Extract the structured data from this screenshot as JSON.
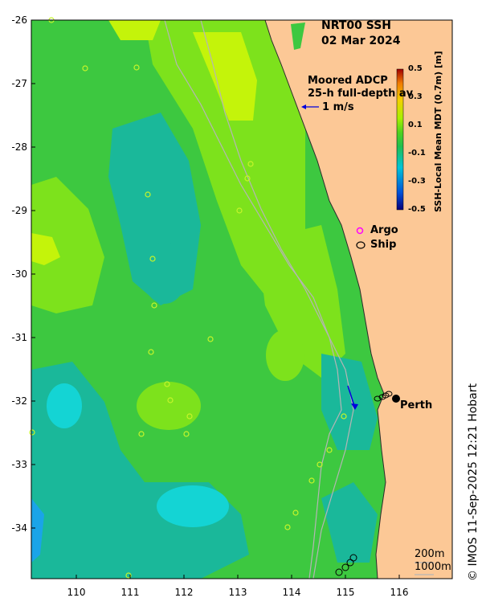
{
  "title": {
    "line1": "NRT00 SSH",
    "line2": "02 Mar 2024"
  },
  "adcp": {
    "line1": "Moored ADCP",
    "line2": "25-h full-depth av",
    "scale_label": "1 m/s"
  },
  "colorbar": {
    "label": "SSH-Local Mean MDT (0.7m) [m]",
    "ticks": [
      "0.5",
      "0.3",
      "0.1",
      "-0.1",
      "-0.3",
      "-0.5"
    ],
    "range": [
      -0.5,
      0.5
    ],
    "colors": [
      "#08007a",
      "#0050d8",
      "#00c4d8",
      "#1fbf4f",
      "#4fd21f",
      "#a8f000",
      "#f4d000",
      "#f07a00",
      "#a00000"
    ]
  },
  "axes": {
    "x_ticks": [
      "110",
      "111",
      "112",
      "113",
      "114",
      "115",
      "116"
    ],
    "y_ticks": [
      "-26",
      "-27",
      "-28",
      "-29",
      "-30",
      "-31",
      "-32",
      "-33",
      "-34"
    ],
    "lon_range": [
      109.15,
      116.9
    ],
    "lat_range": [
      -34.8,
      -26.0
    ]
  },
  "legend": {
    "argo": "Argo",
    "ship": "Ship"
  },
  "places": {
    "perth": "Perth"
  },
  "scale": {
    "isobath1": "200m",
    "isobath2": "1000m"
  },
  "credit": "© IMOS 11-Sep-2025 12:21 Hobart",
  "colors": {
    "land": "#fcc896",
    "ocean_base": "#3dc840",
    "lighter_green": "#7de21c",
    "yellow_green": "#c4f40a",
    "teal": "#1ab89a",
    "cyan": "#14d4d4",
    "deep": "#1aa4e8",
    "isobath": "#b5b5b5",
    "vector": "#0000dd",
    "argo": "#ff00ff"
  }
}
